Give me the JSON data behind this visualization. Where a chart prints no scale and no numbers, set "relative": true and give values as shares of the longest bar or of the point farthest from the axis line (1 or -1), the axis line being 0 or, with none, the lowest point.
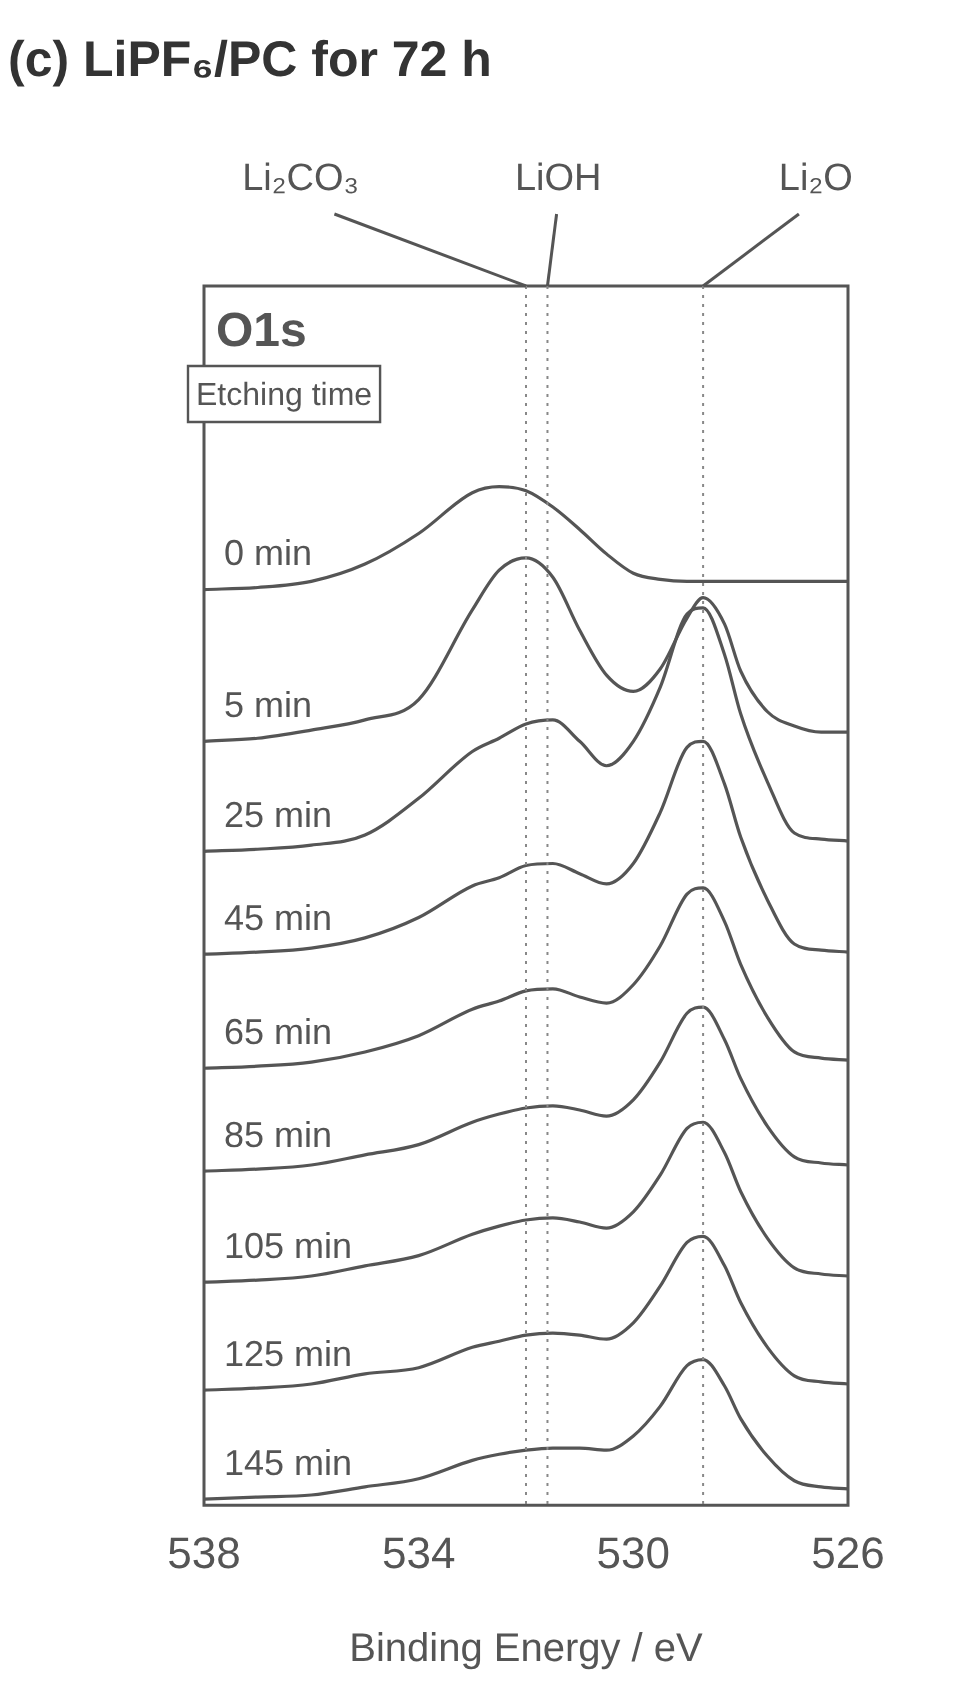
{
  "chart_data": {
    "type": "line",
    "title": "(c) LiPF₆/PC for 72 h",
    "xlabel": "Binding Energy / eV",
    "relative": true,
    "legend": false,
    "grid": false,
    "marker": "none",
    "annotations": [
      "O1s",
      "Etching time"
    ],
    "xlim": [
      538,
      526
    ],
    "xticks": [
      538,
      534,
      530,
      526
    ],
    "x": [
      538,
      537,
      536,
      535,
      534,
      533,
      532.5,
      532,
      531.5,
      531,
      530.5,
      530,
      529.5,
      529,
      528.7,
      528.3,
      528,
      527.5,
      527,
      526.5,
      526
    ],
    "ref_lines": [
      {
        "axis": "x",
        "value": 532.0,
        "label": "Li₂CO₃",
        "color": "#888888",
        "line_style": "dotted"
      },
      {
        "axis": "x",
        "value": 531.6,
        "label": "LiOH",
        "color": "#888888",
        "line_style": "dotted"
      },
      {
        "axis": "x",
        "value": 528.7,
        "label": "Li₂O",
        "color": "#888888",
        "line_style": "dotted"
      }
    ],
    "series": [
      {
        "name": "0 min",
        "color": "#555555",
        "values": [
          0.899,
          0.901,
          0.907,
          0.924,
          0.954,
          0.994,
          1,
          0.996,
          0.98,
          0.958,
          0.934,
          0.915,
          0.909,
          0.907,
          0.907,
          0.907,
          0.907,
          0.907,
          0.907,
          0.907,
          0.907
        ]
      },
      {
        "name": "5 min",
        "color": "#555555",
        "values": [
          0.75,
          0.753,
          0.761,
          0.771,
          0.791,
          0.879,
          0.918,
          0.93,
          0.911,
          0.859,
          0.815,
          0.799,
          0.821,
          0.871,
          0.891,
          0.865,
          0.819,
          0.779,
          0.765,
          0.759,
          0.759
        ]
      },
      {
        "name": "25 min",
        "color": "#555555",
        "values": [
          0.642,
          0.644,
          0.648,
          0.658,
          0.694,
          0.74,
          0.753,
          0.767,
          0.771,
          0.75,
          0.726,
          0.75,
          0.803,
          0.875,
          0.881,
          0.835,
          0.777,
          0.71,
          0.66,
          0.654,
          0.652
        ]
      },
      {
        "name": "45 min",
        "color": "#555555",
        "values": [
          0.541,
          0.543,
          0.547,
          0.557,
          0.577,
          0.608,
          0.616,
          0.628,
          0.63,
          0.62,
          0.61,
          0.63,
          0.68,
          0.744,
          0.75,
          0.708,
          0.656,
          0.594,
          0.551,
          0.545,
          0.543
        ]
      },
      {
        "name": "65 min",
        "color": "#555555",
        "values": [
          0.429,
          0.431,
          0.435,
          0.445,
          0.461,
          0.487,
          0.495,
          0.505,
          0.507,
          0.499,
          0.493,
          0.511,
          0.549,
          0.6,
          0.606,
          0.573,
          0.531,
          0.479,
          0.445,
          0.439,
          0.437
        ]
      },
      {
        "name": "85 min",
        "color": "#555555",
        "values": [
          0.328,
          0.33,
          0.334,
          0.344,
          0.354,
          0.376,
          0.384,
          0.39,
          0.392,
          0.388,
          0.382,
          0.398,
          0.435,
          0.483,
          0.489,
          0.457,
          0.419,
          0.372,
          0.342,
          0.336,
          0.334
        ]
      },
      {
        "name": "105 min",
        "color": "#555555",
        "values": [
          0.219,
          0.221,
          0.225,
          0.235,
          0.245,
          0.266,
          0.274,
          0.28,
          0.282,
          0.278,
          0.272,
          0.288,
          0.324,
          0.37,
          0.376,
          0.346,
          0.308,
          0.262,
          0.233,
          0.227,
          0.225
        ]
      },
      {
        "name": "125 min",
        "color": "#555555",
        "values": [
          0.113,
          0.115,
          0.119,
          0.129,
          0.135,
          0.155,
          0.161,
          0.167,
          0.169,
          0.167,
          0.163,
          0.179,
          0.215,
          0.258,
          0.264,
          0.235,
          0.199,
          0.155,
          0.127,
          0.121,
          0.119
        ]
      },
      {
        "name": "145 min",
        "color": "#555555",
        "values": [
          0.006,
          0.008,
          0.01,
          0.018,
          0.026,
          0.044,
          0.05,
          0.054,
          0.056,
          0.056,
          0.054,
          0.068,
          0.097,
          0.137,
          0.143,
          0.117,
          0.085,
          0.048,
          0.024,
          0.018,
          0.016
        ]
      }
    ]
  }
}
